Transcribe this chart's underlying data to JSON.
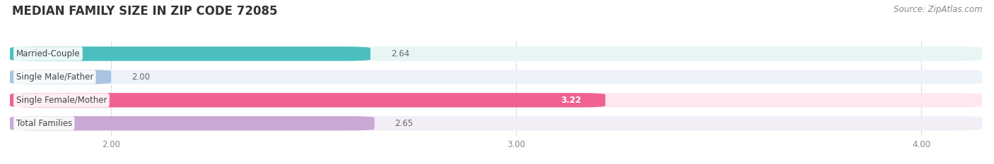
{
  "title": "MEDIAN FAMILY SIZE IN ZIP CODE 72085",
  "source": "Source: ZipAtlas.com",
  "categories": [
    "Married-Couple",
    "Single Male/Father",
    "Single Female/Mother",
    "Total Families"
  ],
  "values": [
    2.64,
    2.0,
    3.22,
    2.65
  ],
  "bar_colors": [
    "#4BBFBF",
    "#A8C4E0",
    "#F06292",
    "#C9A8D4"
  ],
  "bar_bg_colors": [
    "#E8F5F5",
    "#EEF3FA",
    "#FDE8F0",
    "#F3EEF6"
  ],
  "value_inside": [
    false,
    false,
    true,
    false
  ],
  "xlim_min": 1.75,
  "xlim_max": 4.15,
  "xticks": [
    2.0,
    3.0,
    4.0
  ],
  "xtick_labels": [
    "2.00",
    "3.00",
    "4.00"
  ],
  "title_fontsize": 12,
  "label_fontsize": 8.5,
  "value_fontsize": 8.5,
  "source_fontsize": 8.5,
  "bar_height": 0.62,
  "fig_width": 14.06,
  "fig_height": 2.33,
  "background_color": "#FFFFFF",
  "grid_color": "#DDDDDD",
  "label_text_color": "#444444",
  "value_text_color": "#666666",
  "value_inside_color": "#FFFFFF",
  "title_color": "#333333",
  "source_color": "#888888"
}
